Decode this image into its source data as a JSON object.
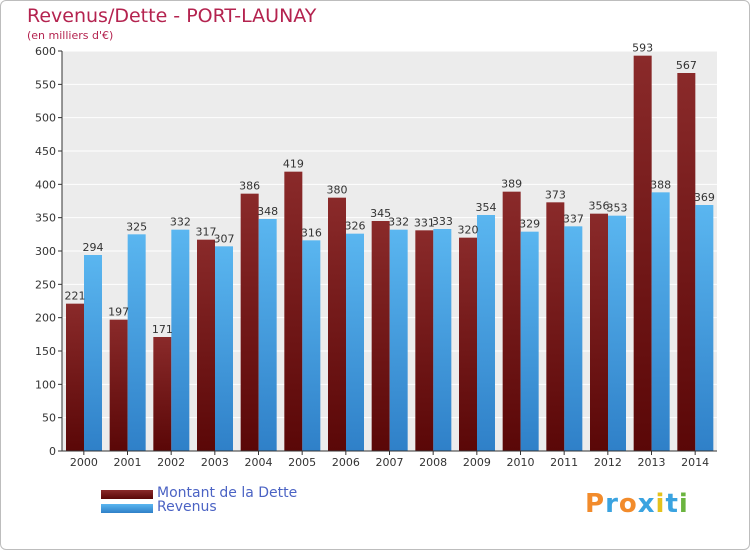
{
  "chart_data": {
    "type": "bar",
    "title": "Revenus/Dette - PORT-LAUNAY",
    "subtitle": "(en milliers d'€)",
    "categories": [
      "2000",
      "2001",
      "2002",
      "2003",
      "2004",
      "2005",
      "2006",
      "2007",
      "2008",
      "2009",
      "2010",
      "2011",
      "2012",
      "2013",
      "2014"
    ],
    "series": [
      {
        "name": "Montant de la Dette",
        "color": "#7a1818",
        "values": [
          221,
          197,
          171,
          317,
          386,
          419,
          380,
          345,
          331,
          320,
          389,
          373,
          356,
          593,
          567
        ]
      },
      {
        "name": "Revenus",
        "color": "#4aa3e6",
        "values": [
          294,
          325,
          332,
          307,
          348,
          316,
          326,
          332,
          333,
          354,
          329,
          337,
          353,
          388,
          369
        ]
      }
    ],
    "yticks": [
      0,
      50,
      100,
      150,
      200,
      250,
      300,
      350,
      400,
      450,
      500,
      550,
      600
    ],
    "ylim": [
      0,
      600
    ],
    "grid": true,
    "legend_position": "bottom-left"
  },
  "brand": {
    "text": "Proxiti",
    "colors": [
      "#f28b2b",
      "#3aa3e0",
      "#f28b2b",
      "#3aa3e0",
      "#e5c21c",
      "#3aa3e0",
      "#6bb43f"
    ]
  }
}
